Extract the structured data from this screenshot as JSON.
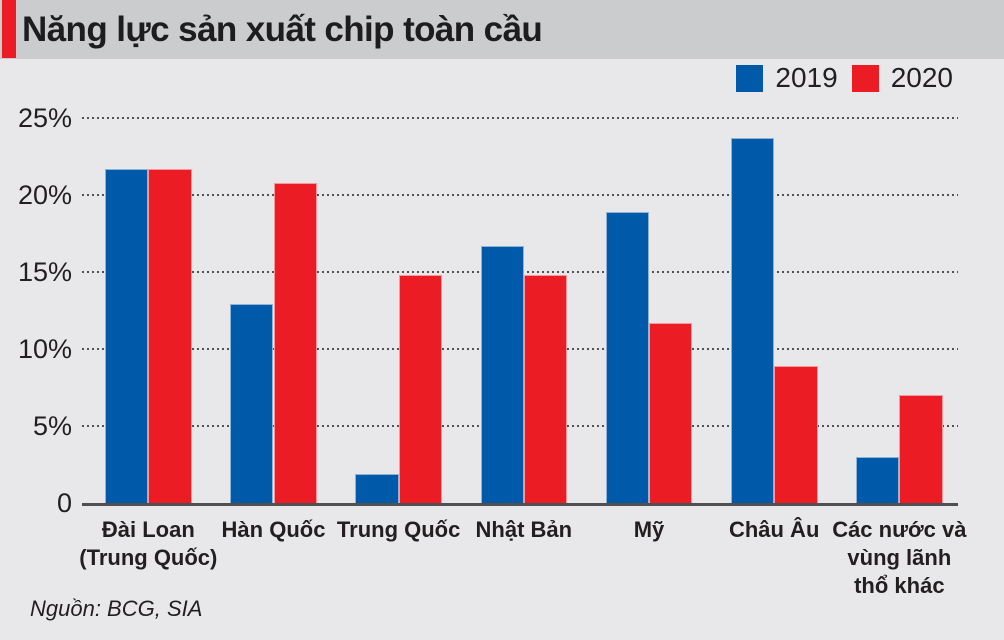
{
  "header": {
    "title": "Năng lực sản xuất chip toàn cầu",
    "accent_color": "#ec1c24",
    "bar_color": "#cbcccd"
  },
  "legend": {
    "items": [
      {
        "label": "2019",
        "color": "#0059a9"
      },
      {
        "label": "2020",
        "color": "#ec1c24"
      }
    ]
  },
  "chart_data": {
    "type": "bar",
    "title": "Năng lực sản xuất chip toàn cầu",
    "categories": [
      "Đài Loan (Trung Quốc)",
      "Hàn Quốc",
      "Trung Quốc",
      "Nhật Bản",
      "Mỹ",
      "Châu Âu",
      "Các nước và vùng lãnh thổ khác"
    ],
    "category_lines": [
      [
        "Đài Loan",
        "(Trung Quốc)"
      ],
      [
        "Hàn Quốc"
      ],
      [
        "Trung Quốc"
      ],
      [
        "Nhật Bản"
      ],
      [
        "Mỹ"
      ],
      [
        "Châu Âu"
      ],
      [
        "Các nước và",
        "vùng lãnh",
        "thổ khác"
      ]
    ],
    "series": [
      {
        "name": "2019",
        "color": "#0059a9",
        "values": [
          21.7,
          12.9,
          1.9,
          16.7,
          18.9,
          23.7,
          3.0
        ]
      },
      {
        "name": "2020",
        "color": "#ec1c24",
        "values": [
          21.7,
          20.8,
          14.8,
          14.8,
          11.7,
          8.9,
          7.0
        ]
      }
    ],
    "unit": "%",
    "xlabel": "",
    "ylabel": "",
    "ylim": [
      0,
      25
    ],
    "y_ticks": [
      {
        "label": "25%",
        "value": 25
      },
      {
        "label": "20%",
        "value": 20
      },
      {
        "label": "15%",
        "value": 15
      },
      {
        "label": "10%",
        "value": 10
      },
      {
        "label": "5%",
        "value": 5
      },
      {
        "label": "0",
        "value": 0
      }
    ],
    "grid": "horizontal-dotted",
    "legend_position": "top-right"
  },
  "source": {
    "text": "Nguồn: BCG, SIA"
  }
}
